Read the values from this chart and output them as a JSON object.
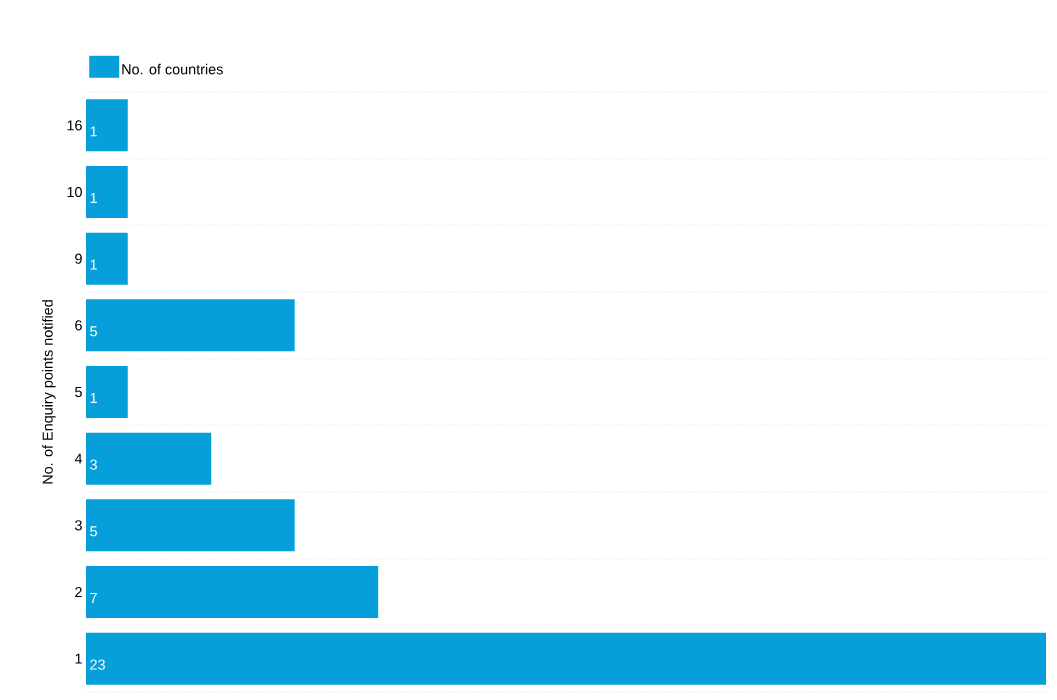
{
  "chart_data": {
    "type": "bar",
    "orientation": "horizontal",
    "ylabel": "No. of Enquiry points notified",
    "categories": [
      "16",
      "10",
      "9",
      "6",
      "5",
      "4",
      "3",
      "2",
      "1"
    ],
    "series": [
      {
        "name": "No. of countries",
        "color": "#079fd9",
        "values": [
          1,
          1,
          1,
          5,
          1,
          3,
          5,
          7,
          23
        ]
      }
    ],
    "data_labels": true,
    "grid": "y",
    "legend": "top left"
  }
}
